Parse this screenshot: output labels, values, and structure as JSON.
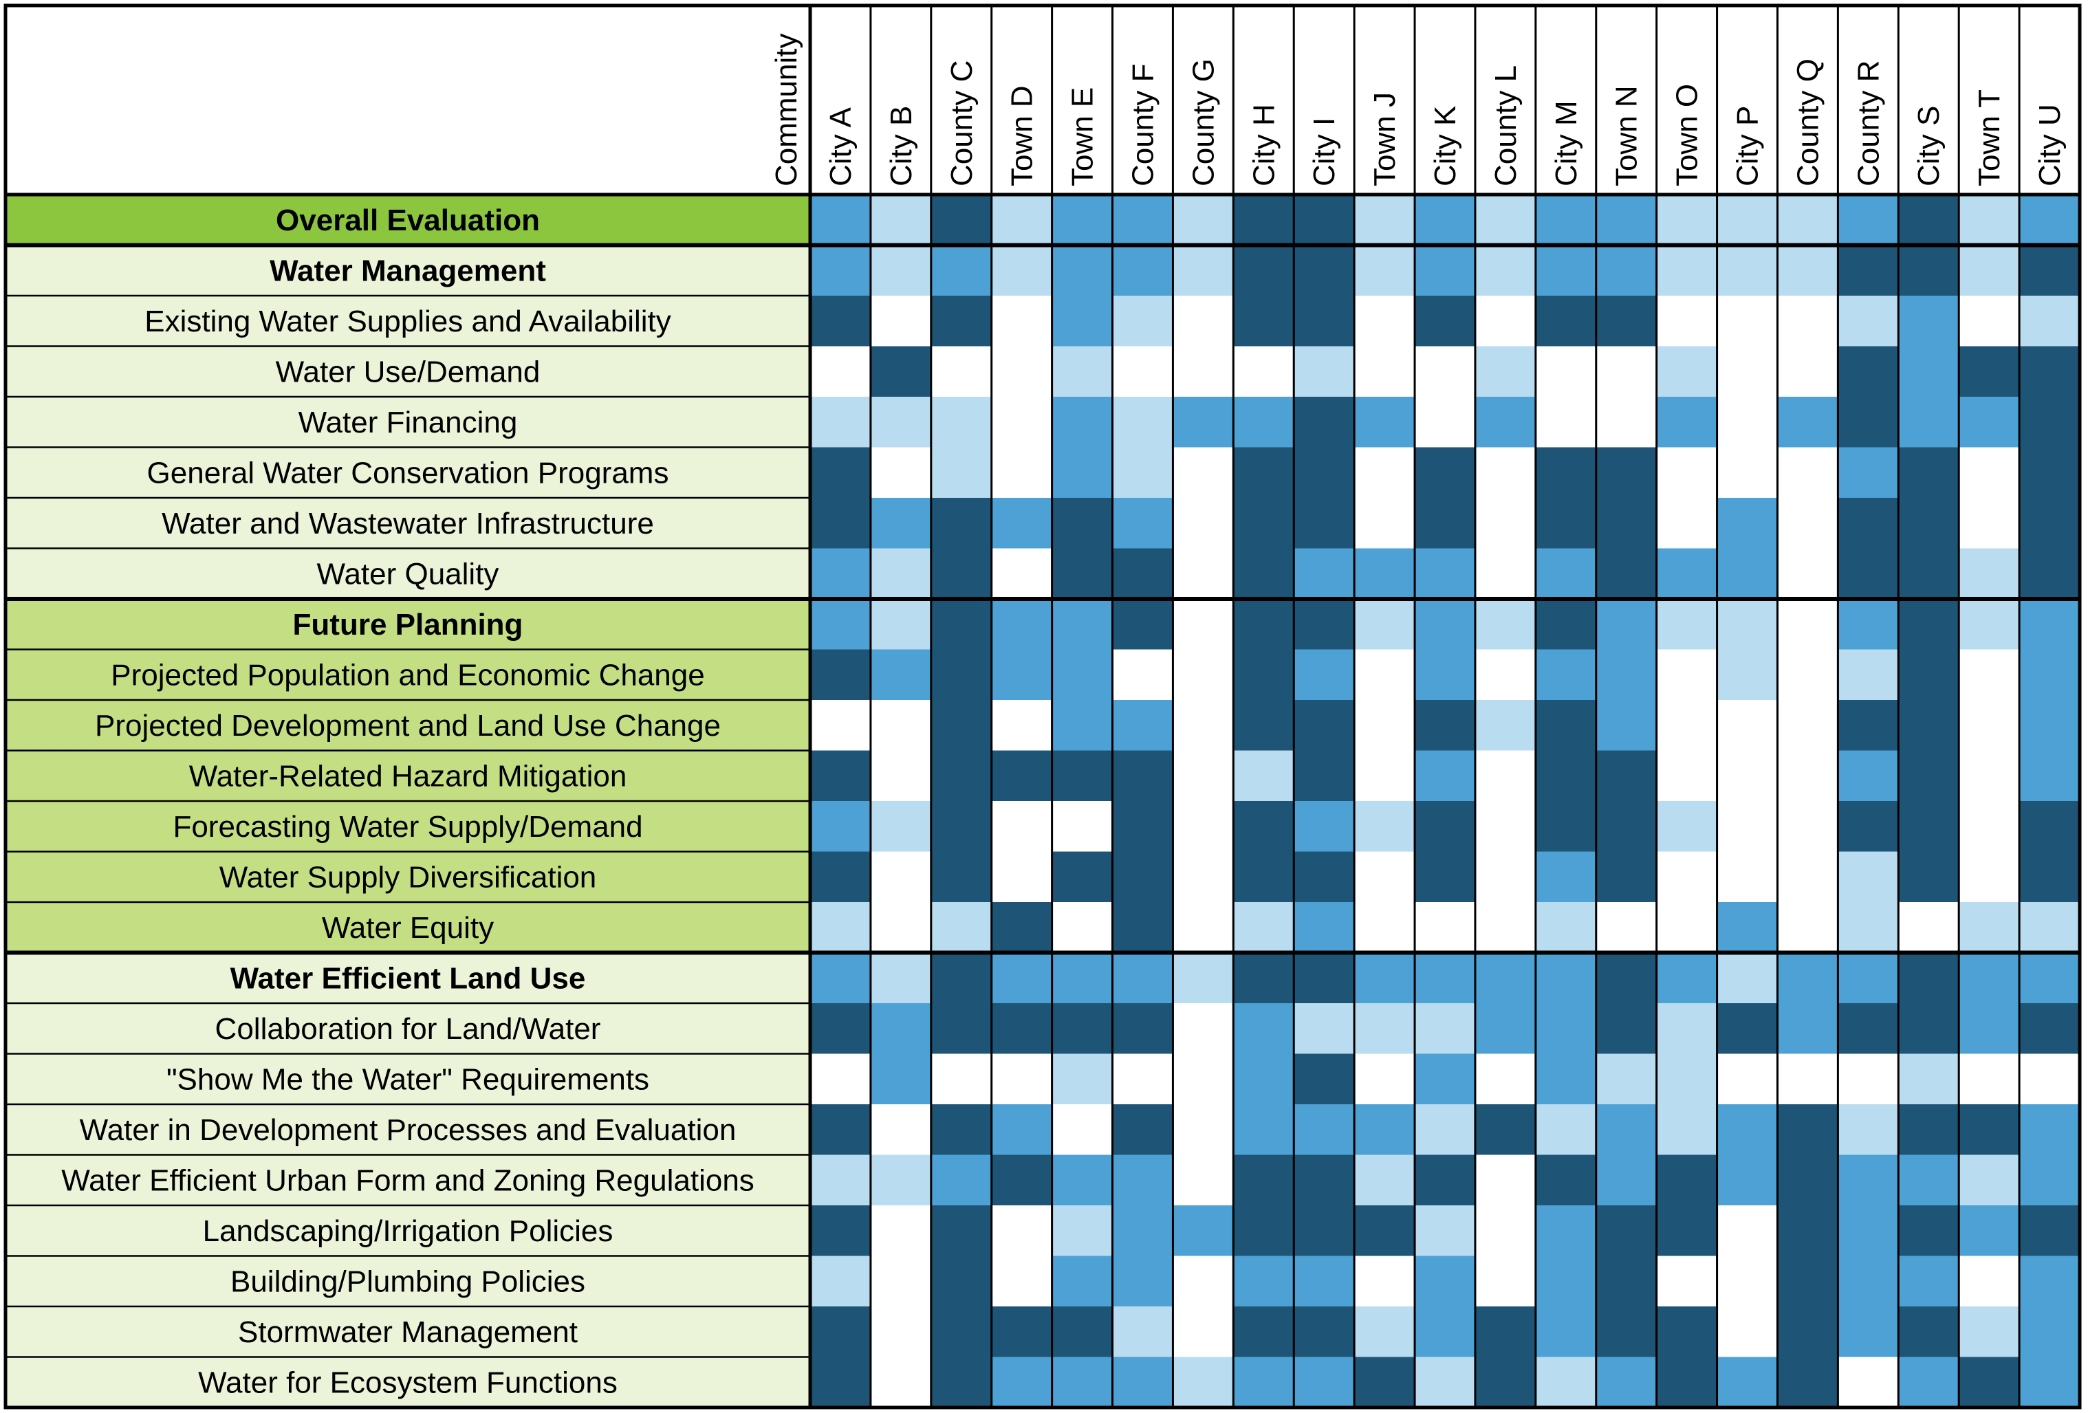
{
  "chart_data": {
    "type": "heatmap",
    "corner_label": "Community",
    "columns": [
      "City A",
      "City B",
      "County C",
      "Town D",
      "Town E",
      "County F",
      "County G",
      "City H",
      "City I",
      "Town J",
      "City K",
      "County L",
      "City M",
      "Town N",
      "Town O",
      "City P",
      "County Q",
      "County R",
      "City S",
      "Town T",
      "City U"
    ],
    "legend": null,
    "colors": {
      "0": "#ffffff",
      "1": "#b9dcf0",
      "2": "#4ea1d4",
      "3": "#1e5577",
      "overall_label_bg": "#8cc63e",
      "water_management_label_bg": "#ebf3d9",
      "future_planning_label_bg": "#c4de84",
      "water_efficient_label_bg": "#ebf3d9",
      "grid": "#000000"
    },
    "rows": [
      {
        "label": "Overall Evaluation",
        "bold": true,
        "group": "overall",
        "values": [
          2,
          1,
          3,
          1,
          2,
          2,
          1,
          3,
          3,
          1,
          2,
          1,
          2,
          2,
          1,
          1,
          1,
          2,
          3,
          1,
          2
        ]
      },
      {
        "label": "Water Management",
        "bold": true,
        "group": "water_management",
        "values": [
          2,
          1,
          2,
          1,
          2,
          2,
          1,
          3,
          3,
          1,
          2,
          1,
          2,
          2,
          1,
          1,
          1,
          3,
          3,
          1,
          3
        ]
      },
      {
        "label": "Existing Water Supplies and Availability",
        "bold": false,
        "group": "water_management",
        "values": [
          3,
          0,
          3,
          0,
          2,
          1,
          0,
          3,
          3,
          0,
          3,
          0,
          3,
          3,
          0,
          0,
          0,
          1,
          2,
          0,
          1
        ]
      },
      {
        "label": "Water Use/Demand",
        "bold": false,
        "group": "water_management",
        "values": [
          0,
          3,
          0,
          0,
          1,
          0,
          0,
          0,
          1,
          0,
          0,
          1,
          0,
          0,
          1,
          0,
          0,
          3,
          2,
          3,
          3
        ]
      },
      {
        "label": "Water Financing",
        "bold": false,
        "group": "water_management",
        "values": [
          1,
          1,
          1,
          0,
          2,
          1,
          2,
          2,
          3,
          2,
          0,
          2,
          0,
          0,
          2,
          0,
          2,
          3,
          2,
          2,
          3
        ]
      },
      {
        "label": "General Water Conservation Programs",
        "bold": false,
        "group": "water_management",
        "values": [
          3,
          0,
          1,
          0,
          2,
          1,
          0,
          3,
          3,
          0,
          3,
          0,
          3,
          3,
          0,
          0,
          0,
          2,
          3,
          0,
          3
        ]
      },
      {
        "label": "Water and Wastewater Infrastructure",
        "bold": false,
        "group": "water_management",
        "values": [
          3,
          2,
          3,
          2,
          3,
          2,
          0,
          3,
          3,
          0,
          3,
          0,
          3,
          3,
          0,
          2,
          0,
          3,
          3,
          0,
          3
        ]
      },
      {
        "label": "Water Quality",
        "bold": false,
        "group": "water_management",
        "values": [
          2,
          1,
          3,
          0,
          3,
          3,
          0,
          3,
          2,
          2,
          2,
          0,
          2,
          3,
          2,
          2,
          0,
          3,
          3,
          1,
          3
        ]
      },
      {
        "label": "Future Planning",
        "bold": true,
        "group": "future_planning",
        "values": [
          2,
          1,
          3,
          2,
          2,
          3,
          0,
          3,
          3,
          1,
          2,
          1,
          3,
          2,
          1,
          1,
          0,
          2,
          3,
          1,
          2
        ]
      },
      {
        "label": "Projected Population and Economic Change",
        "bold": false,
        "group": "future_planning",
        "values": [
          3,
          2,
          3,
          2,
          2,
          0,
          0,
          3,
          2,
          0,
          2,
          0,
          2,
          2,
          0,
          1,
          0,
          1,
          3,
          0,
          2
        ]
      },
      {
        "label": "Projected Development and Land Use Change",
        "bold": false,
        "group": "future_planning",
        "values": [
          0,
          0,
          3,
          0,
          2,
          2,
          0,
          3,
          3,
          0,
          3,
          1,
          3,
          2,
          0,
          0,
          0,
          3,
          3,
          0,
          2
        ]
      },
      {
        "label": "Water-Related Hazard Mitigation",
        "bold": false,
        "group": "future_planning",
        "values": [
          3,
          0,
          3,
          3,
          3,
          3,
          0,
          1,
          3,
          0,
          2,
          0,
          3,
          3,
          0,
          0,
          0,
          2,
          3,
          0,
          2
        ]
      },
      {
        "label": "Forecasting Water Supply/Demand",
        "bold": false,
        "group": "future_planning",
        "values": [
          2,
          1,
          3,
          0,
          0,
          3,
          0,
          3,
          2,
          1,
          3,
          0,
          3,
          3,
          1,
          0,
          0,
          3,
          3,
          0,
          3
        ]
      },
      {
        "label": "Water Supply Diversification",
        "bold": false,
        "group": "future_planning",
        "values": [
          3,
          0,
          3,
          0,
          3,
          3,
          0,
          3,
          3,
          0,
          3,
          0,
          2,
          3,
          0,
          0,
          0,
          1,
          3,
          0,
          3
        ]
      },
      {
        "label": "Water Equity",
        "bold": false,
        "group": "future_planning",
        "values": [
          1,
          0,
          1,
          3,
          0,
          3,
          0,
          1,
          2,
          0,
          0,
          0,
          1,
          0,
          0,
          2,
          0,
          1,
          0,
          1,
          1
        ]
      },
      {
        "label": "Water Efficient Land Use",
        "bold": true,
        "group": "water_efficient",
        "values": [
          2,
          1,
          3,
          2,
          2,
          2,
          1,
          3,
          3,
          2,
          2,
          2,
          2,
          3,
          2,
          1,
          2,
          2,
          3,
          2,
          2
        ]
      },
      {
        "label": "Collaboration for Land/Water",
        "bold": false,
        "group": "water_efficient",
        "values": [
          3,
          2,
          3,
          3,
          3,
          3,
          0,
          2,
          1,
          1,
          1,
          2,
          2,
          3,
          1,
          3,
          2,
          3,
          3,
          2,
          3
        ]
      },
      {
        "label": "\"Show Me the Water\" Requirements",
        "bold": false,
        "group": "water_efficient",
        "values": [
          0,
          2,
          0,
          0,
          1,
          0,
          0,
          2,
          3,
          0,
          2,
          0,
          2,
          1,
          1,
          0,
          0,
          0,
          1,
          0,
          0
        ]
      },
      {
        "label": "Water in Development Processes and Evaluation",
        "bold": false,
        "group": "water_efficient",
        "values": [
          3,
          0,
          3,
          2,
          0,
          3,
          0,
          2,
          2,
          2,
          1,
          3,
          1,
          2,
          1,
          2,
          3,
          1,
          3,
          3,
          2
        ]
      },
      {
        "label": "Water Efficient Urban Form and Zoning Regulations",
        "bold": false,
        "group": "water_efficient",
        "values": [
          1,
          1,
          2,
          3,
          2,
          2,
          0,
          3,
          3,
          1,
          3,
          0,
          3,
          2,
          3,
          2,
          3,
          2,
          2,
          1,
          2
        ]
      },
      {
        "label": "Landscaping/Irrigation Policies",
        "bold": false,
        "group": "water_efficient",
        "values": [
          3,
          0,
          3,
          0,
          1,
          2,
          2,
          3,
          3,
          3,
          1,
          0,
          2,
          3,
          3,
          0,
          3,
          2,
          3,
          2,
          3
        ]
      },
      {
        "label": "Building/Plumbing Policies",
        "bold": false,
        "group": "water_efficient",
        "values": [
          1,
          0,
          3,
          0,
          2,
          2,
          0,
          2,
          2,
          0,
          2,
          0,
          2,
          3,
          0,
          0,
          3,
          2,
          2,
          0,
          2
        ]
      },
      {
        "label": "Stormwater Management",
        "bold": false,
        "group": "water_efficient",
        "values": [
          3,
          0,
          3,
          3,
          3,
          1,
          0,
          3,
          3,
          1,
          2,
          3,
          2,
          3,
          3,
          0,
          3,
          2,
          3,
          1,
          2
        ]
      },
      {
        "label": "Water for Ecosystem Functions",
        "bold": false,
        "group": "water_efficient",
        "values": [
          3,
          0,
          3,
          2,
          2,
          2,
          1,
          2,
          2,
          3,
          1,
          3,
          1,
          2,
          3,
          2,
          3,
          0,
          2,
          3,
          2
        ]
      }
    ]
  }
}
